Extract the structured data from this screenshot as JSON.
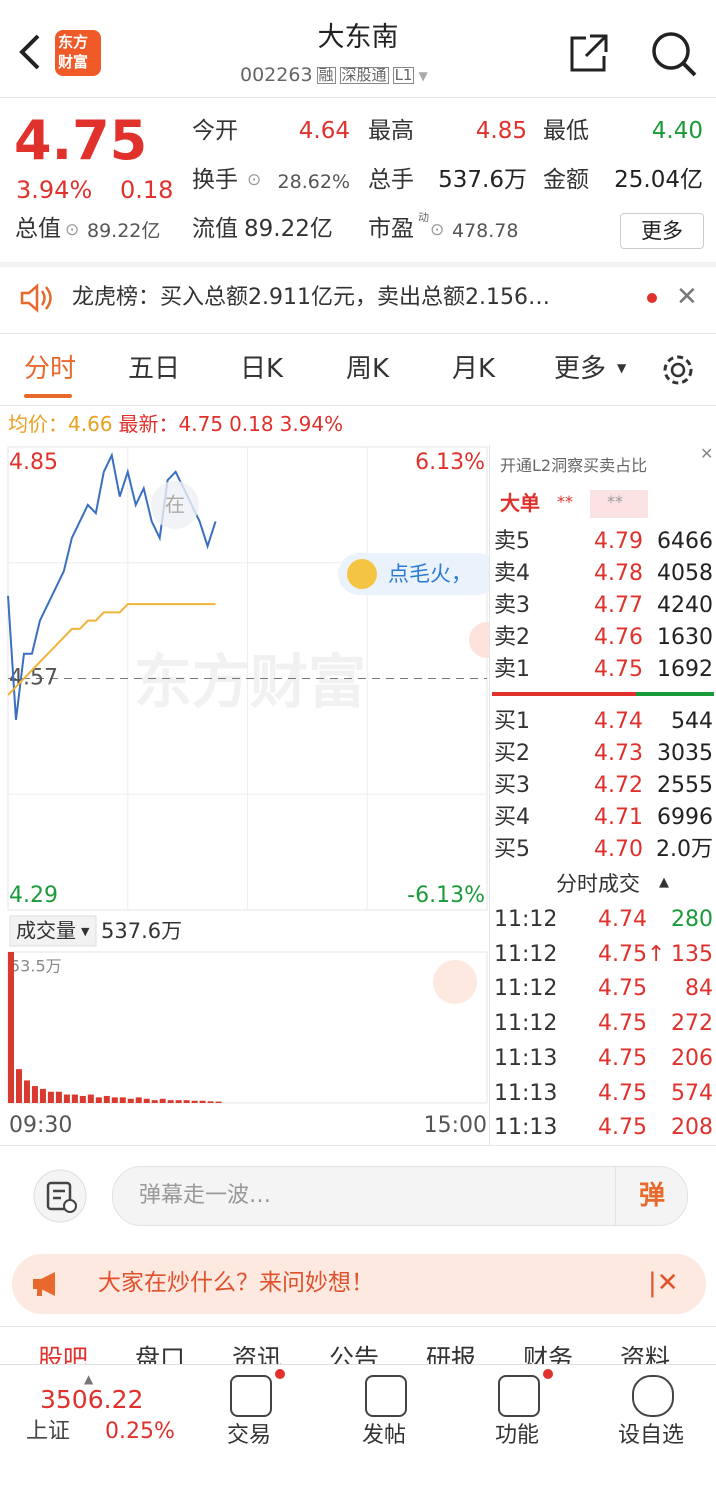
{
  "header": {
    "logo": [
      "东方",
      "财富"
    ],
    "title": "大东南",
    "code": "002263",
    "tags": [
      "融",
      "深股通",
      "L1"
    ]
  },
  "quote": {
    "price": "4.75",
    "change_pct": "3.94%",
    "change": "0.18",
    "stats": [
      {
        "label": "今开",
        "value": "4.64",
        "color": "red"
      },
      {
        "label": "最高",
        "value": "4.85",
        "color": "red"
      },
      {
        "label": "最低",
        "value": "4.40",
        "color": "green"
      },
      {
        "label": "换手",
        "value": "28.62%",
        "color": "gray"
      },
      {
        "label": "总手",
        "value": "537.6万",
        "color": "dark"
      },
      {
        "label": "金额",
        "value": "25.04亿",
        "color": "dark"
      }
    ],
    "row3": [
      {
        "label": "总值",
        "value": "89.22亿"
      },
      {
        "label": "流值",
        "value": "89.22亿"
      },
      {
        "label": "市盈",
        "sup": "动",
        "value": "478.78"
      }
    ],
    "more": "更多"
  },
  "notice": "龙虎榜：买入总额2.911亿元，卖出总额2.156…",
  "tabs": [
    "分时",
    "五日",
    "日K",
    "周K",
    "月K",
    "更多"
  ],
  "legend": {
    "avg_label": "均价：",
    "avg": "4.66",
    "last_label": "最新：",
    "last": "4.75",
    "change": "0.18",
    "change_pct": "3.94%"
  },
  "chart_data": {
    "type": "line",
    "x": [
      0,
      4,
      8,
      12,
      16,
      20,
      24,
      28,
      32,
      36,
      40,
      44,
      48,
      52,
      56,
      60,
      64,
      68,
      72,
      76,
      80,
      84,
      88,
      92,
      96,
      100,
      104
    ],
    "series": [
      {
        "name": "价格",
        "color": "#3b6fc0",
        "values": [
          4.67,
          4.52,
          4.6,
          4.6,
          4.64,
          4.66,
          4.68,
          4.7,
          4.74,
          4.76,
          4.78,
          4.77,
          4.82,
          4.84,
          4.79,
          4.82,
          4.78,
          4.8,
          4.76,
          4.74,
          4.81,
          4.82,
          4.8,
          4.78,
          4.76,
          4.73,
          4.76
        ]
      },
      {
        "name": "均价",
        "color": "#f0b33a",
        "values": [
          4.55,
          4.56,
          4.57,
          4.58,
          4.59,
          4.6,
          4.61,
          4.62,
          4.63,
          4.63,
          4.64,
          4.64,
          4.65,
          4.65,
          4.65,
          4.66,
          4.66,
          4.66,
          4.66,
          4.66,
          4.66,
          4.66,
          4.66,
          4.66,
          4.66,
          4.66,
          4.66
        ]
      }
    ],
    "xlim": [
      0,
      240
    ],
    "xticks": [
      {
        "value": 0,
        "label": "09:30"
      },
      {
        "value": 240,
        "label": "15:00"
      }
    ],
    "ylim": [
      4.29,
      4.85
    ],
    "yticks": [
      4.85,
      4.57,
      4.29
    ],
    "pct_labels": [
      "6.13%",
      "-6.13%"
    ],
    "watermark": "东方财富",
    "bubble": "在",
    "promo": "点毛火，",
    "volume": {
      "label": "成交量",
      "total": "537.6万",
      "max_label": "53.5万",
      "ylim": [
        0,
        53.5
      ],
      "color": "#d9392e",
      "values": [
        53.5,
        12,
        8,
        6,
        5,
        4,
        4,
        3,
        3,
        2.5,
        3,
        2,
        2.5,
        2,
        2,
        1.5,
        2,
        1.5,
        1,
        1.5,
        1,
        1,
        1,
        0.8,
        0.8,
        0.6,
        0.5
      ]
    }
  },
  "book": {
    "header": "开通L2洞察买卖占比",
    "big": "大单",
    "masks": [
      "**",
      "**"
    ],
    "sell": [
      [
        "卖5",
        "4.79",
        "6466"
      ],
      [
        "卖4",
        "4.78",
        "4058"
      ],
      [
        "卖3",
        "4.77",
        "4240"
      ],
      [
        "卖2",
        "4.76",
        "1630"
      ],
      [
        "卖1",
        "4.75",
        "1692"
      ]
    ],
    "buy": [
      [
        "买1",
        "4.74",
        "544"
      ],
      [
        "买2",
        "4.73",
        "3035"
      ],
      [
        "买3",
        "4.72",
        "2555"
      ],
      [
        "买4",
        "4.71",
        "6996"
      ],
      [
        "买5",
        "4.70",
        "2.0万"
      ]
    ],
    "trades_title": "分时成交",
    "trades": [
      [
        "11:12",
        "4.74",
        "280"
      ],
      [
        "11:12",
        "4.75↑",
        "135"
      ],
      [
        "11:12",
        "4.75",
        "84"
      ],
      [
        "11:12",
        "4.75",
        "272"
      ],
      [
        "11:13",
        "4.75",
        "206"
      ],
      [
        "11:13",
        "4.75",
        "574"
      ],
      [
        "11:13",
        "4.75",
        "208"
      ]
    ]
  },
  "danmu": {
    "placeholder": "弹幕走一波…",
    "button": "弹"
  },
  "banner": "大家在炒什么？来问妙想！",
  "bottom_tabs": [
    "股吧",
    "盘口",
    "资讯",
    "公告",
    "研报",
    "财务",
    "资料"
  ],
  "nav": {
    "index_value": "3506.22",
    "index_name": "上证",
    "index_pct": "0.25%",
    "items": [
      "交易",
      "发帖",
      "功能",
      "设自选"
    ]
  }
}
